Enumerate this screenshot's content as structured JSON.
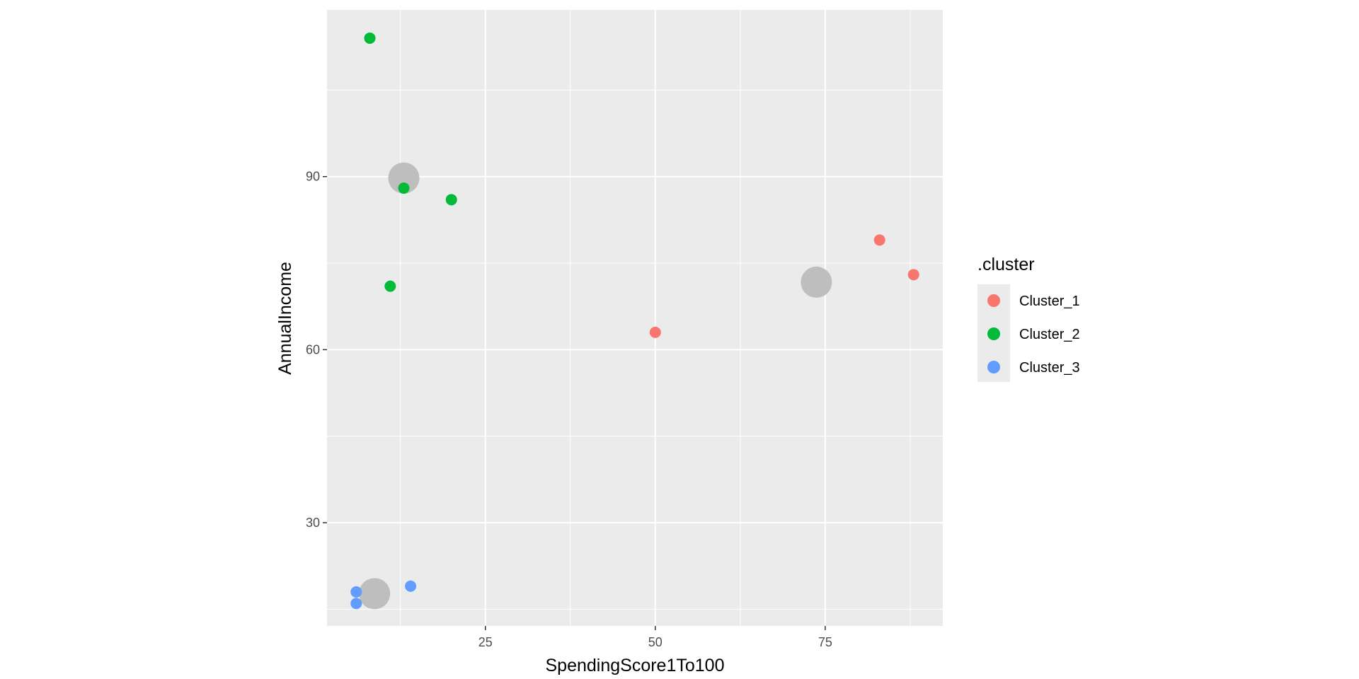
{
  "chart_data": {
    "type": "scatter",
    "xlabel": "SpendingScore1To100",
    "ylabel": "AnnualIncome",
    "xlim": [
      1.7,
      92.3
    ],
    "ylim": [
      12.1,
      118.9
    ],
    "x_ticks": [
      25,
      50,
      75
    ],
    "y_ticks": [
      30,
      60,
      90
    ],
    "grid": true,
    "legend": {
      "title": ".cluster",
      "placement": "right"
    },
    "series": [
      {
        "name": "Cluster_1",
        "color": "#F8766D",
        "points": [
          {
            "x": 50,
            "y": 63
          },
          {
            "x": 83,
            "y": 79
          },
          {
            "x": 88,
            "y": 73
          }
        ]
      },
      {
        "name": "Cluster_2",
        "color": "#00BA38",
        "points": [
          {
            "x": 8,
            "y": 114
          },
          {
            "x": 13,
            "y": 88
          },
          {
            "x": 20,
            "y": 86
          },
          {
            "x": 11,
            "y": 71
          }
        ]
      },
      {
        "name": "Cluster_3",
        "color": "#619CFF",
        "points": [
          {
            "x": 6,
            "y": 18
          },
          {
            "x": 6,
            "y": 16
          },
          {
            "x": 14,
            "y": 19
          }
        ]
      }
    ],
    "centers": {
      "color": "#BEBEBE",
      "points": [
        {
          "x": 73.7,
          "y": 71.7
        },
        {
          "x": 13,
          "y": 89.75
        },
        {
          "x": 8.7,
          "y": 17.7
        }
      ]
    }
  }
}
